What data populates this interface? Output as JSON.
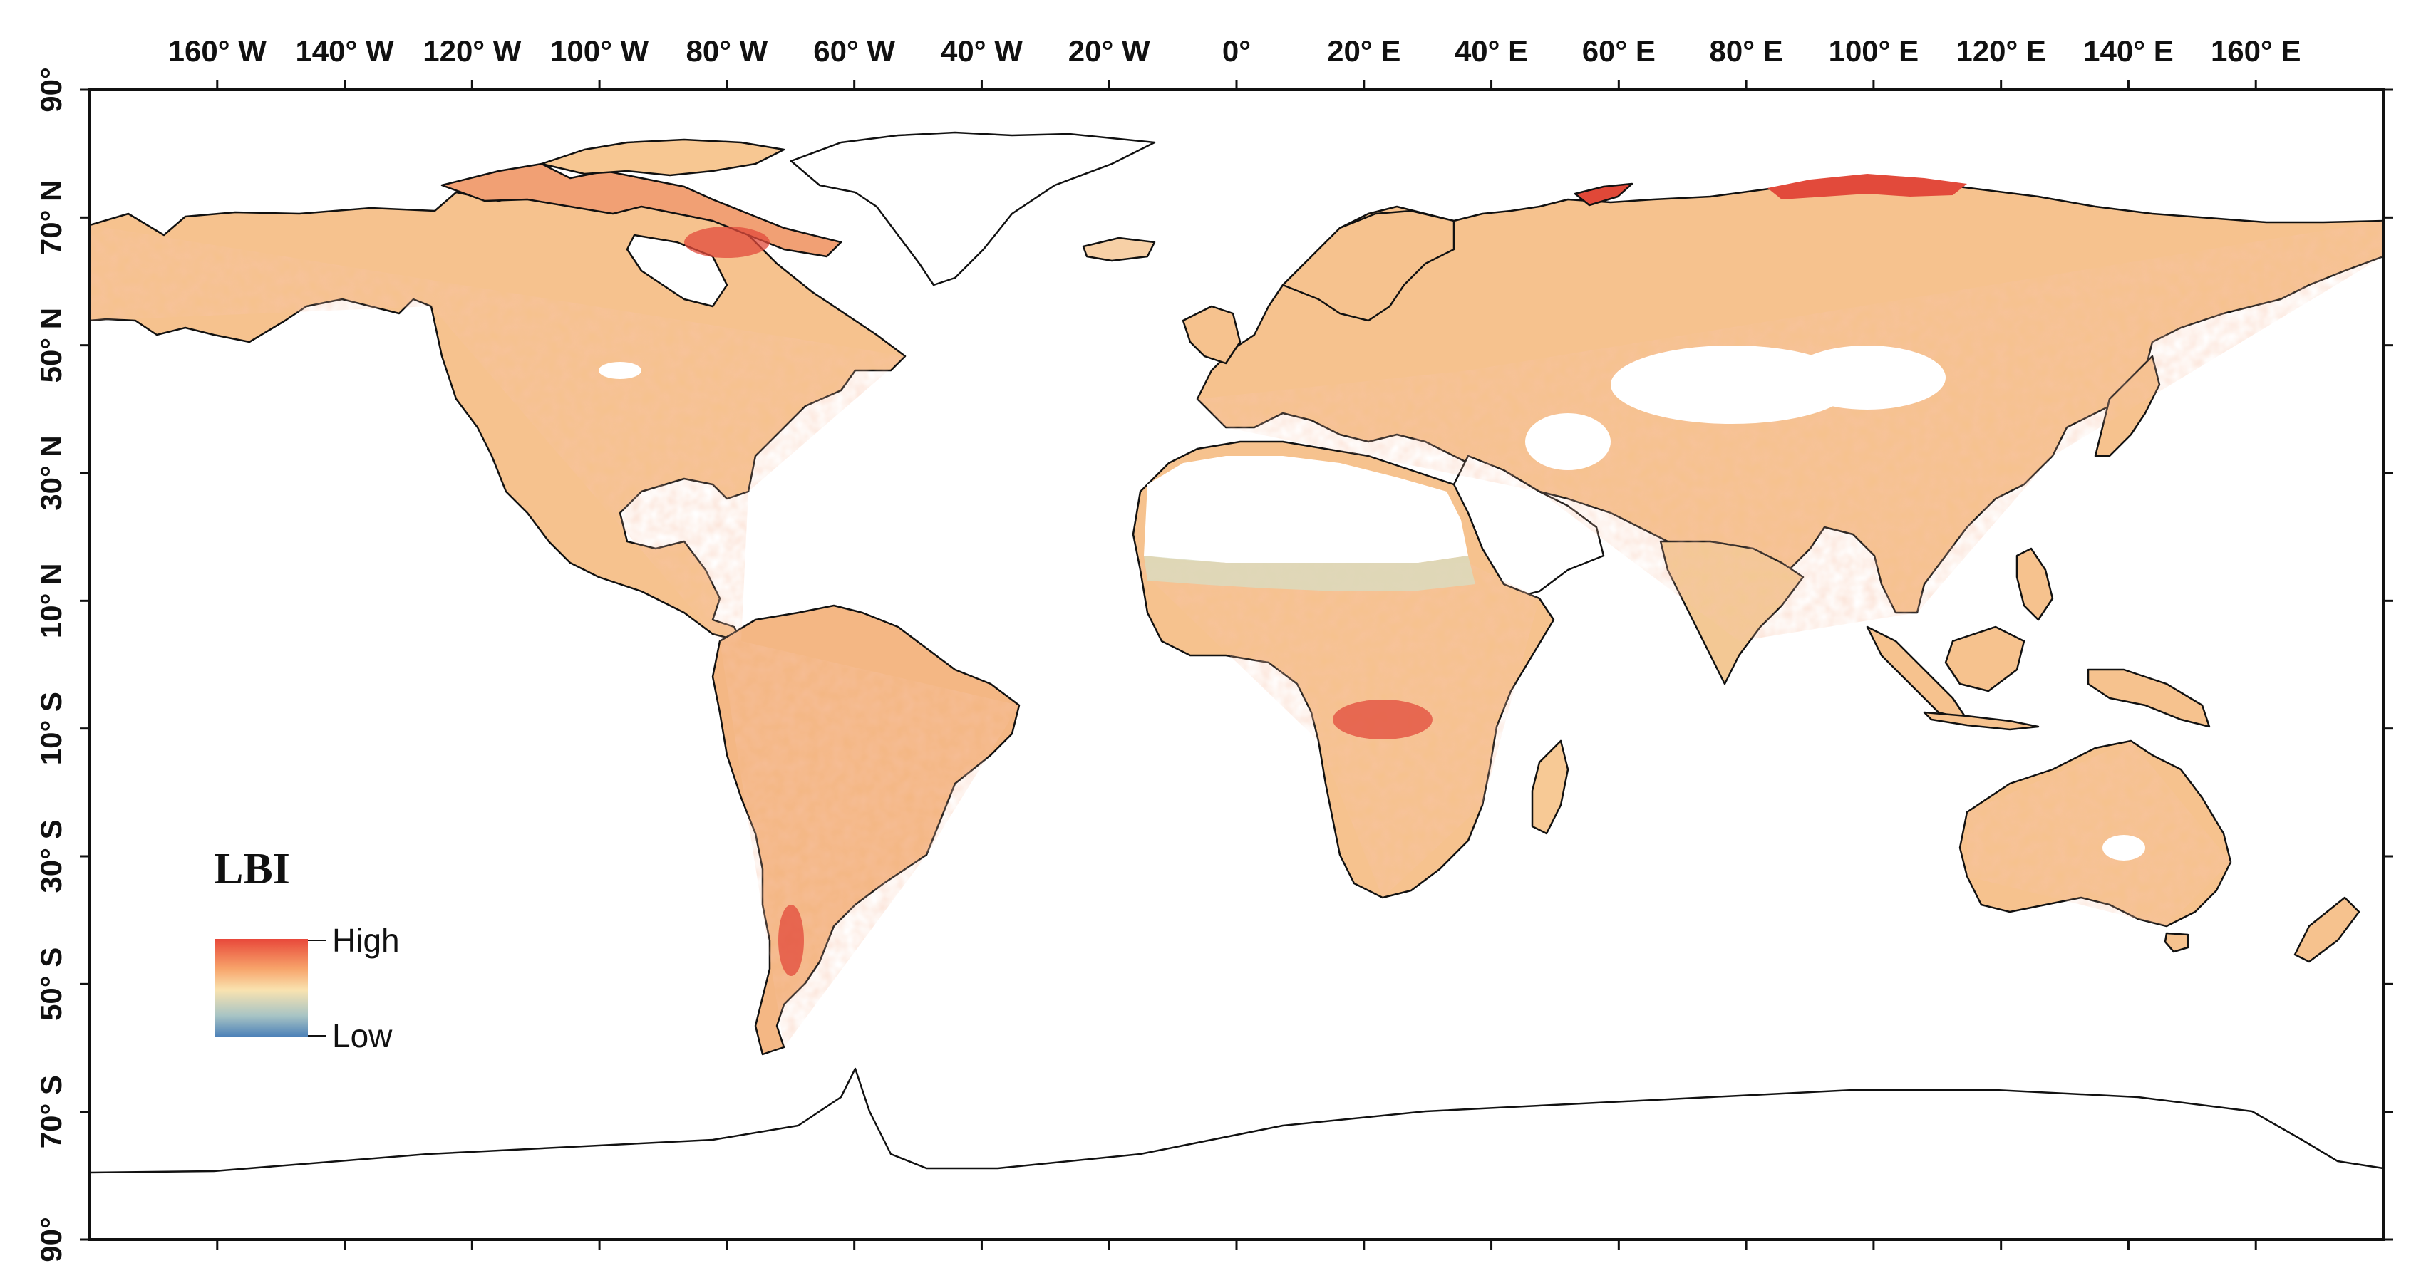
{
  "map": {
    "top_axis_labels": [
      "160° W",
      "140° W",
      "120° W",
      "100° W",
      "80° W",
      "60° W",
      "40° W",
      "20° W",
      "0°",
      "20° E",
      "40° E",
      "60° E",
      "80° E",
      "100° E",
      "120° E",
      "140° E",
      "160° E"
    ],
    "top_axis_longitudes": [
      -160,
      -140,
      -120,
      -100,
      -80,
      -60,
      -40,
      -20,
      0,
      20,
      40,
      60,
      80,
      100,
      120,
      140,
      160
    ],
    "left_axis_labels": [
      "90°",
      "70° N",
      "50° N",
      "30° N",
      "10° N",
      "10° S",
      "30° S",
      "50° S",
      "70° S",
      "90°"
    ],
    "left_axis_latitudes": [
      90,
      70,
      50,
      30,
      10,
      -10,
      -30,
      -50,
      -70,
      -90
    ],
    "legend": {
      "title": "LBI",
      "high_label": "High",
      "low_label": "Low",
      "colors": [
        "#e8483a",
        "#f7a36a",
        "#f9e3b0",
        "#a8c4c4",
        "#4a7fb8"
      ]
    },
    "colors": {
      "land_base": "#f6c28e",
      "land_light": "#fbe2bd",
      "land_dark": "#ef9a6e",
      "high": "#e24a3b",
      "low_area": "#ffffff",
      "semi_arid": "#e9dcb8",
      "outline": "#111111"
    }
  }
}
